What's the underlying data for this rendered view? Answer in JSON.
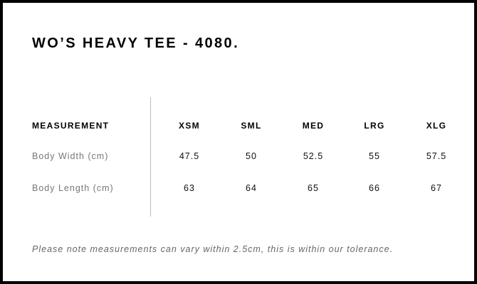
{
  "title": "WO’S HEAVY TEE - 4080.",
  "table": {
    "header_label": "MEASUREMENT",
    "sizes": [
      "XSM",
      "SML",
      "MED",
      "LRG",
      "XLG"
    ],
    "rows": [
      {
        "label": "Body Width (cm)",
        "values": [
          "47.5",
          "50",
          "52.5",
          "55",
          "57.5"
        ]
      },
      {
        "label": "Body Length (cm)",
        "values": [
          "63",
          "64",
          "65",
          "66",
          "67"
        ]
      }
    ]
  },
  "note": "Please note measurements can vary within 2.5cm, this is within our tolerance."
}
